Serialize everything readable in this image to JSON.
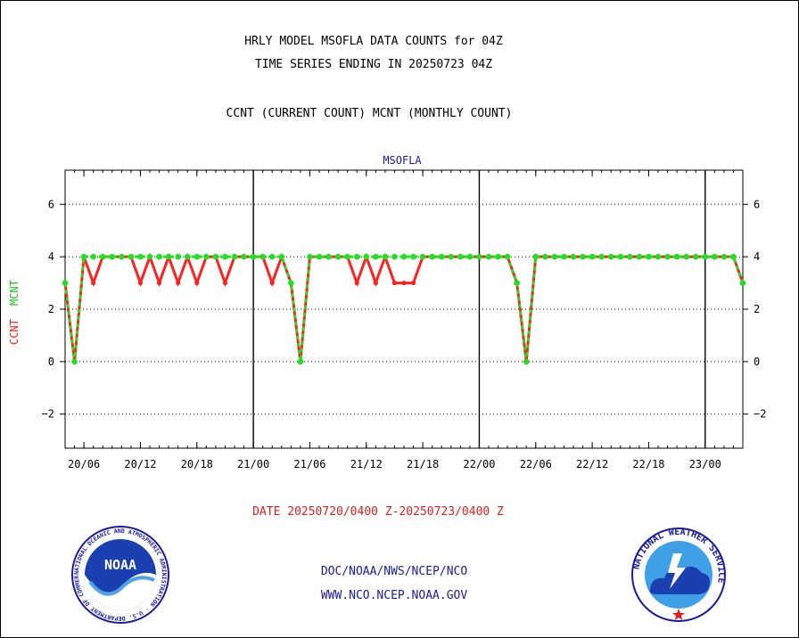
{
  "header": {
    "title_line1": "HRLY MODEL MSOFLA DATA COUNTS for 04Z",
    "title_line2": "TIME SERIES ENDING IN 20250723 04Z",
    "subtitle": "CCNT (CURRENT COUNT) MCNT (MONTHLY COUNT)"
  },
  "plot_label": "MSOFLA",
  "axis": {
    "ylabel_ccnt": "CCNT",
    "ylabel_mcnt": "MCNT",
    "xlabel": "DATE 20250720/0400 Z-20250723/0400 Z"
  },
  "footer": {
    "line1": "DOC/NOAA/NWS/NCEP/NCO",
    "line2": "WWW.NCO.NCEP.NOAA.GOV"
  },
  "logos": {
    "noaa_text": "NOAA",
    "noaa_ring_text": "NATIONAL OCEANIC AND ATMOSPHERIC ADMINISTRATION · U.S. DEPARTMENT OF COMMERCE",
    "nws_ring_text": "NATIONAL WEATHER SERVICE"
  },
  "colors": {
    "ccnt": "#ff2020",
    "mcnt": "#20e020",
    "text_blue": "#1a1aa6",
    "grid": "#000000"
  },
  "chart_data": {
    "type": "line",
    "x_units": "hours since 20250720/0400 Z",
    "xlim": [
      0,
      72
    ],
    "ylim": [
      -3.3,
      7.3
    ],
    "yticks": [
      -2,
      0,
      2,
      4,
      6
    ],
    "xticks": [
      {
        "x": 2,
        "label": "20/06"
      },
      {
        "x": 8,
        "label": "20/12"
      },
      {
        "x": 14,
        "label": "20/18"
      },
      {
        "x": 20,
        "label": "21/00"
      },
      {
        "x": 26,
        "label": "21/06"
      },
      {
        "x": 32,
        "label": "21/12"
      },
      {
        "x": 38,
        "label": "21/18"
      },
      {
        "x": 44,
        "label": "22/00"
      },
      {
        "x": 50,
        "label": "22/06"
      },
      {
        "x": 56,
        "label": "22/12"
      },
      {
        "x": 62,
        "label": "22/18"
      },
      {
        "x": 68,
        "label": "23/00"
      }
    ],
    "day_boundaries": [
      20,
      44,
      68
    ],
    "grid": true,
    "series": [
      {
        "name": "CCNT",
        "values": [
          3,
          0,
          4,
          3,
          4,
          4,
          4,
          4,
          3,
          4,
          3,
          4,
          3,
          4,
          3,
          4,
          4,
          3,
          4,
          4,
          4,
          4,
          3,
          4,
          3,
          0,
          4,
          4,
          4,
          4,
          4,
          3,
          4,
          3,
          4,
          3,
          3,
          3,
          4,
          4,
          4,
          4,
          4,
          4,
          4,
          4,
          4,
          4,
          3,
          0,
          4,
          4,
          4,
          4,
          4,
          4,
          4,
          4,
          4,
          4,
          4,
          4,
          4,
          4,
          4,
          4,
          4,
          4,
          4,
          4,
          4,
          4,
          3
        ]
      },
      {
        "name": "MCNT",
        "values": [
          3,
          0,
          4,
          4,
          4,
          4,
          4,
          4,
          4,
          4,
          4,
          4,
          4,
          4,
          4,
          4,
          4,
          4,
          4,
          4,
          4,
          4,
          4,
          4,
          3,
          0,
          4,
          4,
          4,
          4,
          4,
          4,
          4,
          4,
          4,
          4,
          4,
          4,
          4,
          4,
          4,
          4,
          4,
          4,
          4,
          4,
          4,
          4,
          3,
          0,
          4,
          4,
          4,
          4,
          4,
          4,
          4,
          4,
          4,
          4,
          4,
          4,
          4,
          4,
          4,
          4,
          4,
          4,
          4,
          4,
          4,
          4,
          3
        ]
      }
    ]
  }
}
